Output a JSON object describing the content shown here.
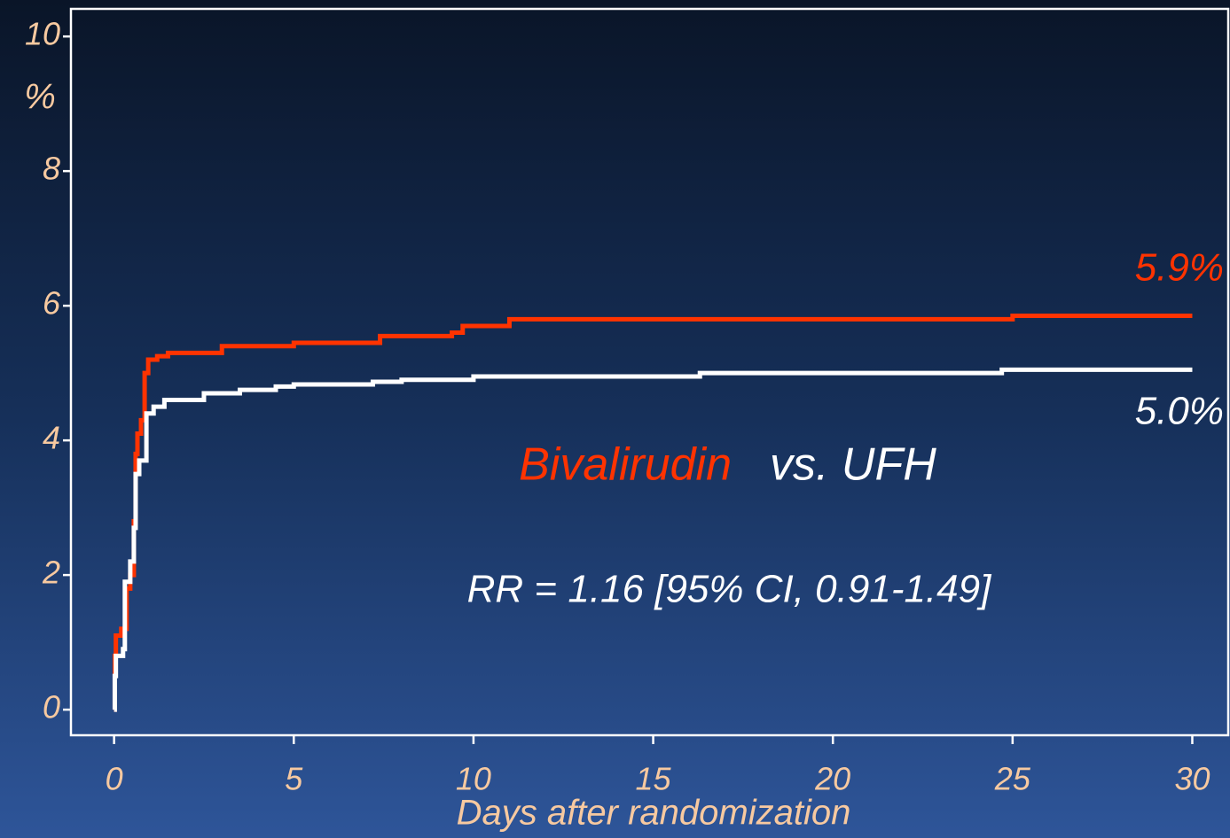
{
  "chart_data": {
    "type": "step",
    "y_label": "%",
    "x_label": "Days after randomization",
    "annotations": [
      "Bivalirudin",
      "vs. UFH",
      "RR = 1.16 [95% CI, 0.91-1.49]",
      "5.9%",
      "5.0%"
    ],
    "xlim": [
      -1.2,
      31.0
    ],
    "ylim": [
      -0.38,
      10.41
    ],
    "xticks": [
      0,
      5,
      10,
      15,
      20,
      25,
      30
    ],
    "yticks": [
      0,
      2,
      4,
      6,
      8,
      10
    ],
    "series": [
      {
        "name": "Bivalirudin",
        "color": "#ff3300",
        "x": [
          0,
          0.02,
          0.05,
          0.2,
          0.35,
          0.45,
          0.55,
          0.6,
          0.65,
          0.75,
          0.85,
          0.95,
          1.2,
          1.5,
          3.0,
          5.0,
          7.4,
          9.4,
          9.7,
          11.0,
          25.0,
          30
        ],
        "values": [
          0,
          0.8,
          1.1,
          1.2,
          1.8,
          2.0,
          2.8,
          3.8,
          4.1,
          4.3,
          5.0,
          5.2,
          5.25,
          5.3,
          5.4,
          5.45,
          5.55,
          5.6,
          5.7,
          5.8,
          5.85,
          5.85
        ]
      },
      {
        "name": "UFH",
        "color": "#ffffff",
        "x": [
          0,
          0.02,
          0.05,
          0.25,
          0.3,
          0.45,
          0.55,
          0.6,
          0.7,
          0.9,
          1.1,
          1.4,
          2.5,
          3.5,
          4.5,
          5.0,
          7.2,
          8.0,
          10.0,
          16.3,
          24.7,
          30
        ],
        "values": [
          0,
          0.5,
          0.8,
          0.9,
          1.9,
          2.2,
          2.7,
          3.5,
          3.7,
          4.4,
          4.5,
          4.6,
          4.7,
          4.75,
          4.8,
          4.83,
          4.87,
          4.9,
          4.95,
          5.0,
          5.05,
          5.05
        ]
      }
    ]
  }
}
